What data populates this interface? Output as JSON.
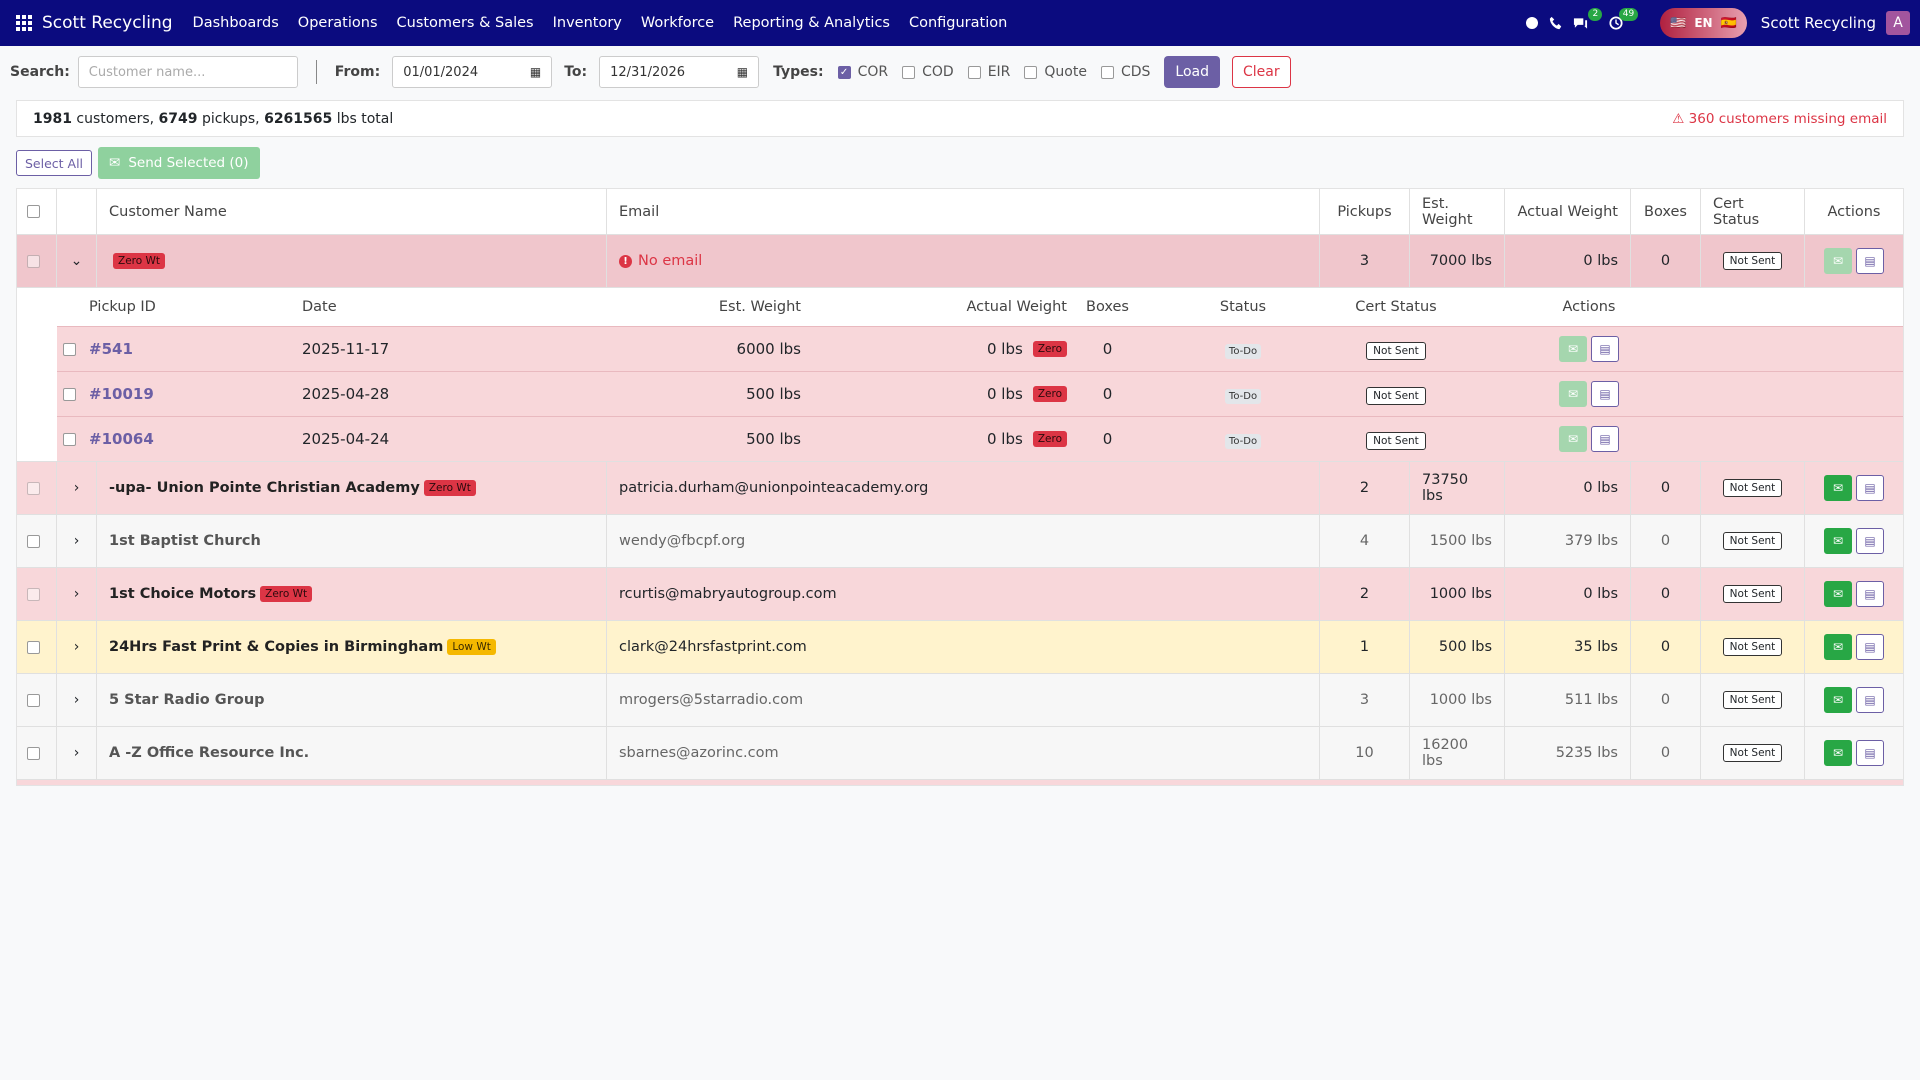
{
  "nav": {
    "brand": "Scott Recycling",
    "menu": [
      "Dashboards",
      "Operations",
      "Customers & Sales",
      "Inventory",
      "Workforce",
      "Reporting & Analytics",
      "Configuration"
    ],
    "chat_count": "2",
    "activity_count": "49",
    "lang": "EN",
    "company": "Scott Recycling",
    "avatar": "A"
  },
  "filters": {
    "search_label": "Search:",
    "search_placeholder": "Customer name...",
    "from_label": "From:",
    "from_value": "01/01/2024",
    "to_label": "To:",
    "to_value": "12/31/2026",
    "types_label": "Types:",
    "types": [
      {
        "label": "COR",
        "checked": true
      },
      {
        "label": "COD",
        "checked": false
      },
      {
        "label": "EIR",
        "checked": false
      },
      {
        "label": "Quote",
        "checked": false
      },
      {
        "label": "CDS",
        "checked": false
      }
    ],
    "load_label": "Load",
    "clear_label": "Clear"
  },
  "summary": {
    "customers": "1981",
    "customers_word": "customers,",
    "pickups": "6749",
    "pickups_word": "pickups,",
    "lbs": "6261565",
    "lbs_word": "lbs total",
    "missing": "360 customers missing email"
  },
  "bulk": {
    "select_all": "Select All",
    "send_selected": "Send Selected (0)"
  },
  "table": {
    "headers": {
      "name": "Customer Name",
      "email": "Email",
      "pickups": "Pickups",
      "est": "Est. Weight",
      "actual": "Actual Weight",
      "boxes": "Boxes",
      "cert": "Cert Status",
      "actions": "Actions"
    },
    "expanded": {
      "name": "",
      "tag": "Zero Wt",
      "email": "No email",
      "pickups": "3",
      "est": "7000 lbs",
      "actual": "0 lbs",
      "boxes": "0",
      "cert": "Not Sent"
    },
    "sub_headers": {
      "id": "Pickup ID",
      "date": "Date",
      "est": "Est. Weight",
      "actual": "Actual Weight",
      "boxes": "Boxes",
      "status": "Status",
      "cert": "Cert Status",
      "actions": "Actions"
    },
    "sub_rows": [
      {
        "id": "#541",
        "date": "2025-11-17",
        "est": "6000 lbs",
        "actual": "0 lbs",
        "tag": "Zero",
        "boxes": "0",
        "status": "To-Do",
        "cert": "Not Sent"
      },
      {
        "id": "#10019",
        "date": "2025-04-28",
        "est": "500 lbs",
        "actual": "0 lbs",
        "tag": "Zero",
        "boxes": "0",
        "status": "To-Do",
        "cert": "Not Sent"
      },
      {
        "id": "#10064",
        "date": "2025-04-24",
        "est": "500 lbs",
        "actual": "0 lbs",
        "tag": "Zero",
        "boxes": "0",
        "status": "To-Do",
        "cert": "Not Sent"
      }
    ],
    "rows": [
      {
        "name": "-upa- Union Pointe Christian Academy",
        "tag": "Zero Wt",
        "email": "patricia.durham@unionpointeacademy.org",
        "pickups": "2",
        "est": "73750 lbs",
        "actual": "0 lbs",
        "boxes": "0",
        "cert": "Not Sent",
        "style": "zero"
      },
      {
        "name": "1st Baptist Church",
        "tag": "",
        "email": "wendy@fbcpf.org",
        "pickups": "4",
        "est": "1500 lbs",
        "actual": "379 lbs",
        "boxes": "0",
        "cert": "Not Sent",
        "style": "plain"
      },
      {
        "name": "1st Choice Motors",
        "tag": "Zero Wt",
        "email": "rcurtis@mabryautogroup.com",
        "pickups": "2",
        "est": "1000 lbs",
        "actual": "0 lbs",
        "boxes": "0",
        "cert": "Not Sent",
        "style": "zero"
      },
      {
        "name": "24Hrs Fast Print & Copies in Birmingham",
        "tag": "Low Wt",
        "email": "clark@24hrsfastprint.com",
        "pickups": "1",
        "est": "500 lbs",
        "actual": "35 lbs",
        "boxes": "0",
        "cert": "Not Sent",
        "style": "low"
      },
      {
        "name": "5 Star Radio Group",
        "tag": "",
        "email": "mrogers@5starradio.com",
        "pickups": "3",
        "est": "1000 lbs",
        "actual": "511 lbs",
        "boxes": "0",
        "cert": "Not Sent",
        "style": "plain"
      },
      {
        "name": "A -Z Office Resource Inc.",
        "tag": "",
        "email": "sbarnes@azorinc.com",
        "pickups": "10",
        "est": "16200 lbs",
        "actual": "5235 lbs",
        "boxes": "0",
        "cert": "Not Sent",
        "style": "plain"
      }
    ]
  },
  "colors": {
    "navbar": "#0b0b7f",
    "primary": "#6c5fa5",
    "danger": "#dc3545",
    "success": "#28a745",
    "warning": "#f5b800",
    "zero_row": "#f8d7da",
    "low_row": "#fff3cd"
  }
}
